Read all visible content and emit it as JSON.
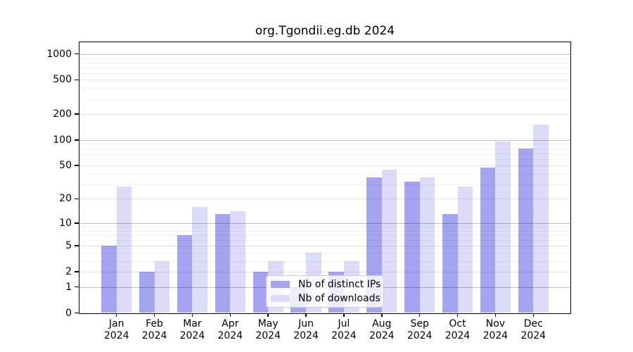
{
  "title": "org.Tgondii.eg.db 2024",
  "legend": {
    "items": [
      {
        "label": "Nb of distinct IPs",
        "color": "#a4a4f0"
      },
      {
        "label": "Nb of downloads",
        "color": "#dcdcf9"
      }
    ]
  },
  "colors": {
    "distinct_ips_bar": "#a4a4f0",
    "downloads_bar": "#dcdcf9",
    "frame": "#000000",
    "legend_border": "#cccccc"
  },
  "chart_data": {
    "type": "bar",
    "title": "org.Tgondii.eg.db 2024",
    "year": "2024",
    "categories": [
      "Jan",
      "Feb",
      "Mar",
      "Apr",
      "May",
      "Jun",
      "Jul",
      "Aug",
      "Sep",
      "Oct",
      "Nov",
      "Dec"
    ],
    "series": [
      {
        "name": "Nb of distinct IPs",
        "color": "#a4a4f0",
        "values": [
          5,
          2,
          7,
          13,
          2,
          1,
          2,
          36,
          32,
          13,
          47,
          80
        ]
      },
      {
        "name": "Nb of downloads",
        "color": "#dcdcf9",
        "values": [
          28,
          3,
          16,
          14,
          3,
          4,
          3,
          45,
          36,
          28,
          95,
          150
        ]
      }
    ],
    "xlabel": "",
    "ylabel": "",
    "y_scale": "log10(value+1)",
    "y_ticks": [
      0,
      1,
      2,
      5,
      10,
      20,
      50,
      100,
      200,
      500,
      1000
    ],
    "y_major_gridlines": [
      1,
      10,
      100,
      1000
    ],
    "y_minor_gridlines": [
      3,
      4,
      6,
      7,
      8,
      9,
      30,
      40,
      60,
      70,
      80,
      90,
      300,
      400,
      600,
      700,
      800,
      900
    ],
    "ylim": [
      0,
      1300
    ],
    "grid": true,
    "legend_position": "inside-bottom-center"
  }
}
